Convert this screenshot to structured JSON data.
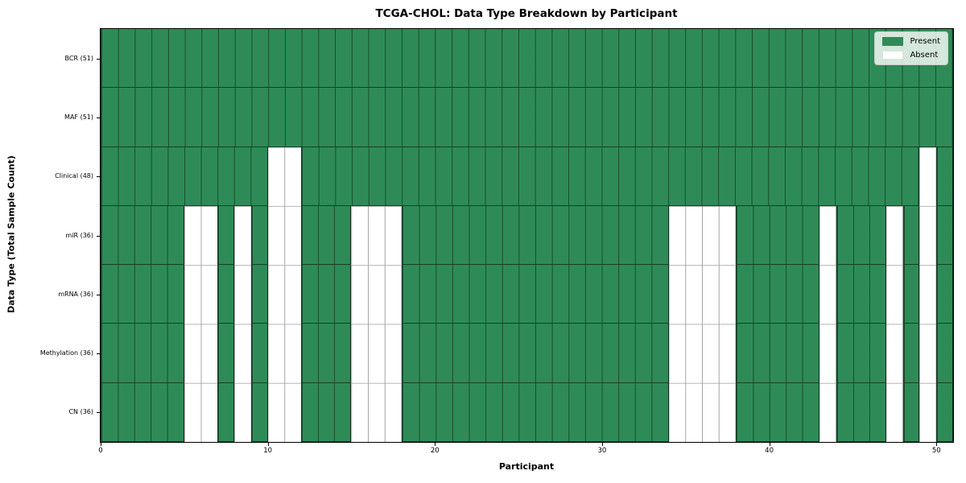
{
  "chart_data": {
    "type": "heatmap",
    "title": "TCGA-CHOL: Data Type Breakdown by Participant",
    "xlabel": "Participant",
    "ylabel": "Data Type (Total Sample Count)",
    "n_participants": 51,
    "x_range": [
      0,
      51
    ],
    "x_ticks": [
      0,
      10,
      20,
      30,
      40,
      50
    ],
    "grid": true,
    "legend_position": "upper-right",
    "legend": [
      {
        "label": "Present",
        "color": "#2e8b57"
      },
      {
        "label": "Absent",
        "color": "#ffffff"
      }
    ],
    "colors": {
      "present": "#2e8b57",
      "absent": "#ffffff",
      "cell_edge": "rgba(10,25,16,0.65)",
      "grid": "#a5a5a5",
      "spine": "#000000"
    },
    "rows": [
      {
        "label": "BCR (51)",
        "data_type": "BCR",
        "total_sample_count": 51,
        "absent_participants": []
      },
      {
        "label": "MAF (51)",
        "data_type": "MAF",
        "total_sample_count": 51,
        "absent_participants": []
      },
      {
        "label": "Clinical (48)",
        "data_type": "Clinical",
        "total_sample_count": 48,
        "absent_participants": [
          10,
          11,
          49
        ]
      },
      {
        "label": "miR (36)",
        "data_type": "miR",
        "total_sample_count": 36,
        "absent_participants": [
          5,
          6,
          8,
          10,
          11,
          15,
          16,
          17,
          34,
          35,
          36,
          37,
          43,
          47,
          49
        ]
      },
      {
        "label": "mRNA (36)",
        "data_type": "mRNA",
        "total_sample_count": 36,
        "absent_participants": [
          5,
          6,
          8,
          10,
          11,
          15,
          16,
          17,
          34,
          35,
          36,
          37,
          43,
          47,
          49
        ]
      },
      {
        "label": "Methylation (36)",
        "data_type": "Methylation",
        "total_sample_count": 36,
        "absent_participants": [
          5,
          6,
          8,
          10,
          11,
          15,
          16,
          17,
          34,
          35,
          36,
          37,
          43,
          47,
          49
        ]
      },
      {
        "label": "CN (36)",
        "data_type": "CN",
        "total_sample_count": 36,
        "absent_participants": [
          5,
          6,
          8,
          10,
          11,
          15,
          16,
          17,
          34,
          35,
          36,
          37,
          43,
          47,
          49
        ]
      }
    ]
  }
}
